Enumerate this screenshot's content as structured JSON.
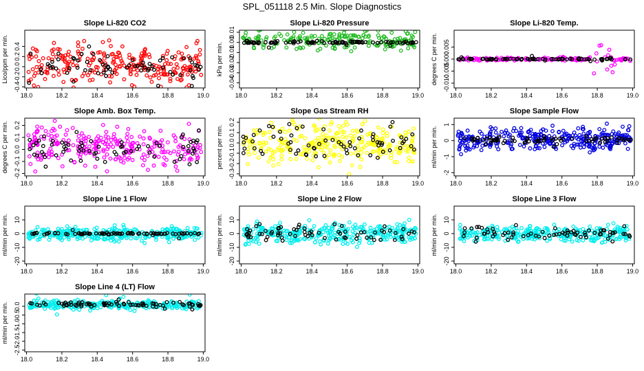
{
  "page": {
    "title": "SPL_051118  2.5 Min. Slope Diagnostics"
  },
  "chart_data": [
    {
      "type": "scatter",
      "title": "Slope Li-820 CO2",
      "ylabel": "Lico/ppm per min.",
      "color": "#ff0000",
      "xlim": [
        17.99,
        19.01
      ],
      "ylim": [
        -0.42,
        0.72
      ],
      "xticks": [
        "18.0",
        "18.2",
        "18.4",
        "18.6",
        "18.8",
        "19.0"
      ],
      "yticks": [
        "-0.4",
        "-0.2",
        "0.0",
        "0.2",
        "0.4"
      ],
      "ytick_values": [
        -0.4,
        -0.2,
        0.0,
        0.2,
        0.4
      ],
      "series": [
        {
          "name": "points",
          "color": "#ff0000",
          "kind": "noisy",
          "center": 0.05,
          "spread": 0.2,
          "count": 260
        },
        {
          "name": "black points",
          "color": "#000000",
          "kind": "noisy",
          "center": 0.0,
          "spread": 0.15,
          "count": 70
        }
      ]
    },
    {
      "type": "scatter",
      "title": "Slope Li-820 Pressure",
      "ylabel": "kPa per min.",
      "color": "#00cc00",
      "xlim": [
        17.99,
        19.01
      ],
      "ylim": [
        -0.045,
        0.012
      ],
      "xticks": [
        "18.0",
        "18.2",
        "18.4",
        "18.6",
        "18.8",
        "19.0"
      ],
      "yticks": [
        "-0.04",
        "-0.03",
        "-0.02",
        "-0.01",
        "0.00",
        "0.01"
      ],
      "ytick_values": [
        -0.04,
        -0.03,
        -0.02,
        -0.01,
        0.0,
        0.01
      ],
      "series": [
        {
          "name": "points",
          "color": "#22bb22",
          "kind": "noisy",
          "center": 0.002,
          "spread": 0.005,
          "count": 200
        },
        {
          "name": "black points",
          "color": "#000000",
          "kind": "line",
          "center": 0.0,
          "spread": 0.0006,
          "count": 90
        }
      ]
    },
    {
      "type": "scatter",
      "title": "Slope Li-820 Temp.",
      "ylabel": "degrees C per min.",
      "color": "#ff00ff",
      "xlim": [
        17.99,
        19.01
      ],
      "ylim": [
        -0.012,
        0.012
      ],
      "xticks": [
        "18.0",
        "18.2",
        "18.4",
        "18.6",
        "18.8",
        "19.0"
      ],
      "yticks": [
        "-0.010",
        "-0.005",
        "0.000",
        "0.005"
      ],
      "ytick_values": [
        -0.01,
        -0.005,
        0.0,
        0.005
      ],
      "series": [
        {
          "name": "points",
          "color": "#ff00ff",
          "kind": "burst",
          "center": 0.0,
          "spread": 0.004,
          "count": 140,
          "burst_x": [
            18.76,
            18.9
          ]
        },
        {
          "name": "black points",
          "color": "#000000",
          "kind": "line",
          "center": 0.0,
          "spread": 0.0001,
          "count": 80
        }
      ]
    },
    {
      "type": "scatter",
      "title": "Slope Amb. Box Temp.",
      "ylabel": "degrees C per min.",
      "color": "#ff00ff",
      "xlim": [
        17.99,
        19.01
      ],
      "ylim": [
        -0.22,
        0.26
      ],
      "xticks": [
        "18.0",
        "18.2",
        "18.4",
        "18.6",
        "18.8",
        "19.0"
      ],
      "yticks": [
        "-0.2",
        "-0.1",
        "0.0",
        "0.1",
        "0.2"
      ],
      "ytick_values": [
        -0.2,
        -0.1,
        0.0,
        0.1,
        0.2
      ],
      "series": [
        {
          "name": "points",
          "color": "#ff00ff",
          "kind": "noisy",
          "center": 0.02,
          "spread": 0.08,
          "count": 260
        },
        {
          "name": "black points",
          "color": "#000000",
          "kind": "noisy",
          "center": 0.0,
          "spread": 0.06,
          "count": 70
        }
      ]
    },
    {
      "type": "scatter",
      "title": "Slope Gas Stream RH",
      "ylabel": "percent per min.",
      "color": "#ffff00",
      "xlim": [
        17.99,
        19.01
      ],
      "ylim": [
        -0.32,
        0.24
      ],
      "xticks": [
        "18.0",
        "18.2",
        "18.4",
        "18.6",
        "18.8",
        "19.0"
      ],
      "yticks": [
        "-0.3",
        "-0.2",
        "-0.1",
        "0.0",
        "0.1",
        "0.2"
      ],
      "ytick_values": [
        -0.3,
        -0.2,
        -0.1,
        0.0,
        0.1,
        0.2
      ],
      "series": [
        {
          "name": "points",
          "color": "#ffff00",
          "kind": "noisy",
          "center": 0.0,
          "spread": 0.1,
          "count": 300
        },
        {
          "name": "black points",
          "color": "#000000",
          "kind": "noisy",
          "center": 0.0,
          "spread": 0.08,
          "count": 70
        }
      ]
    },
    {
      "type": "scatter",
      "title": "Slope Sample Flow",
      "ylabel": "ml/min per min.",
      "color": "#0000cc",
      "xlim": [
        17.99,
        19.01
      ],
      "ylim": [
        -2.2,
        1.4
      ],
      "xticks": [
        "18.0",
        "18.2",
        "18.4",
        "18.6",
        "18.8",
        "19.0"
      ],
      "yticks": [
        "-2",
        "-1",
        "0",
        "1"
      ],
      "ytick_values": [
        -2,
        -1,
        0,
        1
      ],
      "series": [
        {
          "name": "points",
          "color": "#0000dd",
          "kind": "noisy",
          "center": 0.1,
          "spread": 0.35,
          "count": 320
        },
        {
          "name": "black points",
          "color": "#000000",
          "kind": "line",
          "center": 0.05,
          "spread": 0.12,
          "count": 70
        }
      ]
    },
    {
      "type": "scatter",
      "title": "Slope Line 1 Flow",
      "ylabel": "ml/min per min.",
      "color": "#00ffff",
      "xlim": [
        17.99,
        19.01
      ],
      "ylim": [
        -22,
        20
      ],
      "xticks": [
        "18.0",
        "18.2",
        "18.4",
        "18.6",
        "18.8",
        "19.0"
      ],
      "yticks": [
        "-20",
        "-10",
        "0",
        "10"
      ],
      "ytick_values": [
        -20,
        -10,
        0,
        10
      ],
      "series": [
        {
          "name": "points",
          "color": "#00eeee",
          "kind": "noisy",
          "center": 0.0,
          "spread": 2.5,
          "count": 320
        },
        {
          "name": "black points",
          "color": "#000000",
          "kind": "line",
          "center": 0.0,
          "spread": 0.3,
          "count": 80
        }
      ]
    },
    {
      "type": "scatter",
      "title": "Slope Line 2 Flow",
      "ylabel": "ml/min per min.",
      "color": "#00ffff",
      "xlim": [
        17.99,
        19.01
      ],
      "ylim": [
        -22,
        20
      ],
      "xticks": [
        "18.0",
        "18.2",
        "18.4",
        "18.6",
        "18.8",
        "19.0"
      ],
      "yticks": [
        "-20",
        "-10",
        "0",
        "10"
      ],
      "ytick_values": [
        -20,
        -10,
        0,
        10
      ],
      "series": [
        {
          "name": "points",
          "color": "#00eeee",
          "kind": "noisy",
          "center": 0.0,
          "spread": 3.5,
          "count": 320
        },
        {
          "name": "black points",
          "color": "#000000",
          "kind": "noisy",
          "center": 0.0,
          "spread": 2.5,
          "count": 70
        }
      ]
    },
    {
      "type": "scatter",
      "title": "Slope Line 3 Flow",
      "ylabel": "ml/min per min.",
      "color": "#00ffff",
      "xlim": [
        17.99,
        19.01
      ],
      "ylim": [
        -22,
        20
      ],
      "xticks": [
        "18.0",
        "18.2",
        "18.4",
        "18.6",
        "18.8",
        "19.0"
      ],
      "yticks": [
        "-20",
        "-10",
        "0",
        "10"
      ],
      "ytick_values": [
        -20,
        -10,
        0,
        10
      ],
      "series": [
        {
          "name": "points",
          "color": "#00eeee",
          "kind": "noisy",
          "center": 0.0,
          "spread": 3.0,
          "count": 320
        },
        {
          "name": "black points",
          "color": "#000000",
          "kind": "noisy",
          "center": 0.5,
          "spread": 2.5,
          "count": 70
        }
      ]
    },
    {
      "type": "scatter",
      "title": "Slope Line 4 (LT) Flow",
      "ylabel": "ml/min per min.",
      "color": "#00ffff",
      "xlim": [
        17.99,
        19.01
      ],
      "ylim": [
        -2.6,
        0.7
      ],
      "xticks": [
        "18.0",
        "18.2",
        "18.4",
        "18.6",
        "18.8",
        "19.0"
      ],
      "yticks": [
        "-2.5",
        "-2.0",
        "-1.5",
        "-1.0",
        "-0.5",
        "0.0"
      ],
      "ytick_values": [
        -2.5,
        -2.0,
        -1.5,
        -1.0,
        -0.5,
        0.0
      ],
      "series": [
        {
          "name": "points",
          "color": "#00eeee",
          "kind": "line",
          "center": 0.1,
          "spread": 0.12,
          "count": 300
        },
        {
          "name": "black points",
          "color": "#000000",
          "kind": "line",
          "center": 0.1,
          "spread": 0.08,
          "count": 80
        }
      ]
    }
  ]
}
